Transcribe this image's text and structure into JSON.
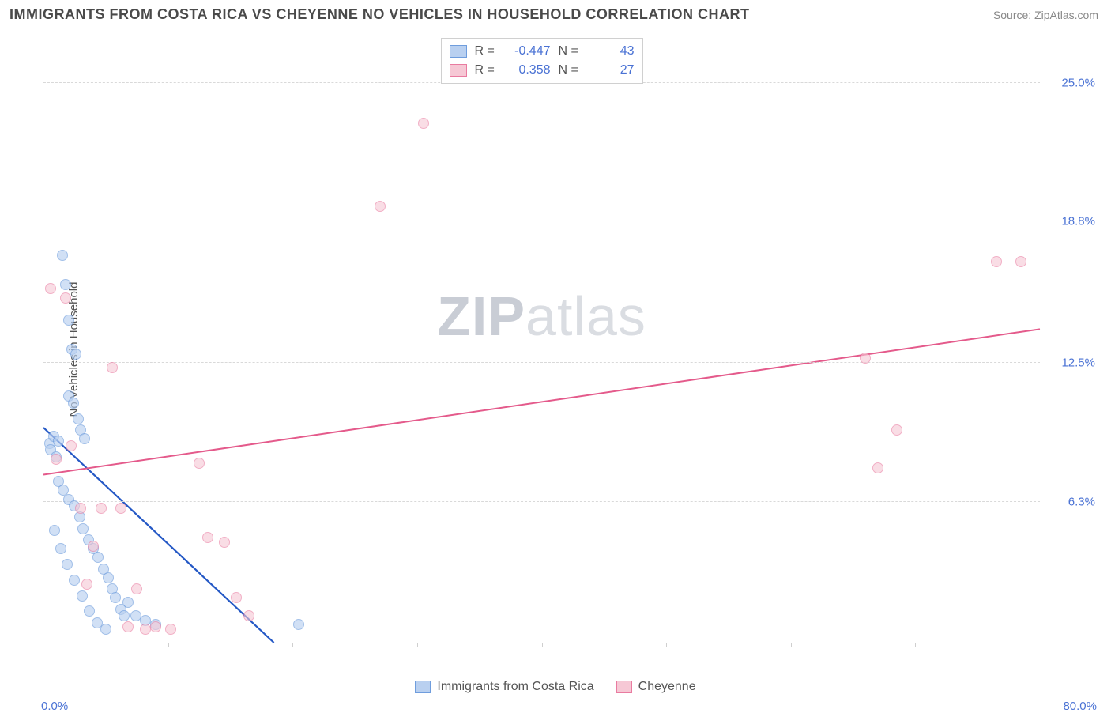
{
  "header": {
    "title": "IMMIGRANTS FROM COSTA RICA VS CHEYENNE NO VEHICLES IN HOUSEHOLD CORRELATION CHART",
    "source": "Source: ZipAtlas.com"
  },
  "chart": {
    "type": "scatter",
    "ylabel": "No Vehicles in Household",
    "watermark": "ZIPatlas",
    "background_color": "#ffffff",
    "grid_color": "#d9d9d9",
    "axis_color": "#cfcfcf",
    "tick_label_color": "#4a72d4",
    "xlim": [
      0,
      80
    ],
    "ylim": [
      0,
      27
    ],
    "x_min_label": "0.0%",
    "x_max_label": "80.0%",
    "y_ticks": [
      {
        "value": 6.3,
        "label": "6.3%"
      },
      {
        "value": 12.5,
        "label": "12.5%"
      },
      {
        "value": 18.8,
        "label": "18.8%"
      },
      {
        "value": 25.0,
        "label": "25.0%"
      }
    ],
    "x_tick_positions": [
      10,
      20,
      30,
      40,
      50,
      60,
      70
    ],
    "series": [
      {
        "key": "costa_rica",
        "label": "Immigrants from Costa Rica",
        "fill": "#b9d0f0",
        "stroke": "#6f9ddd",
        "line_color": "#2458c5",
        "line_width": 2.2,
        "marker_radius": 7,
        "marker_opacity": 0.65,
        "R": "-0.447",
        "N": "43",
        "trend": {
          "x1": 0,
          "y1": 9.6,
          "x2": 18.5,
          "y2": 0
        },
        "points": [
          [
            0.5,
            8.9
          ],
          [
            0.6,
            8.6
          ],
          [
            0.8,
            9.2
          ],
          [
            1.0,
            8.3
          ],
          [
            1.2,
            9.0
          ],
          [
            1.5,
            17.3
          ],
          [
            1.8,
            16.0
          ],
          [
            2.0,
            14.4
          ],
          [
            2.3,
            13.1
          ],
          [
            2.6,
            12.9
          ],
          [
            2.0,
            11.0
          ],
          [
            2.4,
            10.7
          ],
          [
            2.8,
            10.0
          ],
          [
            3.0,
            9.5
          ],
          [
            3.3,
            9.1
          ],
          [
            1.2,
            7.2
          ],
          [
            1.6,
            6.8
          ],
          [
            2.0,
            6.4
          ],
          [
            2.5,
            6.1
          ],
          [
            2.9,
            5.6
          ],
          [
            3.2,
            5.1
          ],
          [
            3.6,
            4.6
          ],
          [
            4.0,
            4.2
          ],
          [
            4.4,
            3.8
          ],
          [
            4.8,
            3.3
          ],
          [
            5.2,
            2.9
          ],
          [
            5.5,
            2.4
          ],
          [
            5.8,
            2.0
          ],
          [
            6.2,
            1.5
          ],
          [
            6.5,
            1.2
          ],
          [
            0.9,
            5.0
          ],
          [
            1.4,
            4.2
          ],
          [
            1.9,
            3.5
          ],
          [
            2.5,
            2.8
          ],
          [
            3.1,
            2.1
          ],
          [
            3.7,
            1.4
          ],
          [
            4.3,
            0.9
          ],
          [
            5.0,
            0.6
          ],
          [
            6.8,
            1.8
          ],
          [
            7.4,
            1.2
          ],
          [
            8.2,
            1.0
          ],
          [
            9.0,
            0.8
          ],
          [
            20.5,
            0.8
          ]
        ]
      },
      {
        "key": "cheyenne",
        "label": "Cheyenne",
        "fill": "#f6c8d5",
        "stroke": "#e97ba0",
        "line_color": "#e45a8b",
        "line_width": 2.0,
        "marker_radius": 7,
        "marker_opacity": 0.6,
        "R": "0.358",
        "N": "27",
        "trend": {
          "x1": 0,
          "y1": 7.5,
          "x2": 80,
          "y2": 14.0
        },
        "points": [
          [
            0.6,
            15.8
          ],
          [
            1.0,
            8.2
          ],
          [
            1.8,
            15.4
          ],
          [
            2.2,
            8.8
          ],
          [
            3.0,
            6.0
          ],
          [
            3.5,
            2.6
          ],
          [
            4.0,
            4.3
          ],
          [
            4.6,
            6.0
          ],
          [
            5.5,
            12.3
          ],
          [
            6.2,
            6.0
          ],
          [
            6.8,
            0.7
          ],
          [
            7.5,
            2.4
          ],
          [
            8.2,
            0.6
          ],
          [
            9.0,
            0.7
          ],
          [
            10.2,
            0.6
          ],
          [
            12.5,
            8.0
          ],
          [
            13.2,
            4.7
          ],
          [
            14.5,
            4.5
          ],
          [
            15.5,
            2.0
          ],
          [
            16.5,
            1.2
          ],
          [
            27.0,
            19.5
          ],
          [
            30.5,
            23.2
          ],
          [
            66.0,
            12.7
          ],
          [
            67.0,
            7.8
          ],
          [
            68.5,
            9.5
          ],
          [
            76.5,
            17.0
          ],
          [
            78.5,
            17.0
          ]
        ]
      }
    ]
  },
  "legend_bottom": {
    "items": [
      {
        "label": "Immigrants from Costa Rica",
        "fill": "#b9d0f0",
        "stroke": "#6f9ddd"
      },
      {
        "label": "Cheyenne",
        "fill": "#f6c8d5",
        "stroke": "#e97ba0"
      }
    ]
  }
}
